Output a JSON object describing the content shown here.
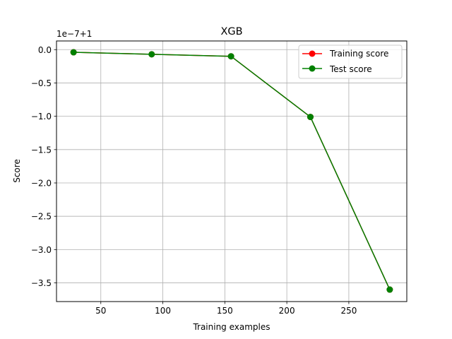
{
  "chart_data": {
    "type": "line",
    "title": "XGB",
    "xlabel": "Training examples",
    "ylabel": "Score",
    "y_offset_label": "1e−7+1",
    "x": [
      28,
      91,
      155,
      219,
      283
    ],
    "x_ticks": [
      50,
      100,
      150,
      200,
      250
    ],
    "x_tick_labels": [
      "50",
      "100",
      "150",
      "200",
      "250"
    ],
    "y_ticks": [
      0.0,
      -0.5,
      -1.0,
      -1.5,
      -2.0,
      -2.5,
      -3.0,
      -3.5
    ],
    "y_tick_labels": [
      "0.0",
      "−0.5",
      "−1.0",
      "−1.5",
      "−2.0",
      "−2.5",
      "−3.0",
      "−3.5"
    ],
    "xlim": [
      14.25,
      296.75
    ],
    "ylim": [
      -3.78,
      0.13
    ],
    "grid": true,
    "legend_position": "top-right",
    "series": [
      {
        "name": "Training score",
        "color": "#ff0000",
        "values": [
          -0.04,
          -0.07,
          -0.1,
          -1.01,
          -3.6
        ]
      },
      {
        "name": "Test score",
        "color": "#008000",
        "values": [
          -0.04,
          -0.07,
          -0.1,
          -1.01,
          -3.6
        ]
      }
    ]
  }
}
